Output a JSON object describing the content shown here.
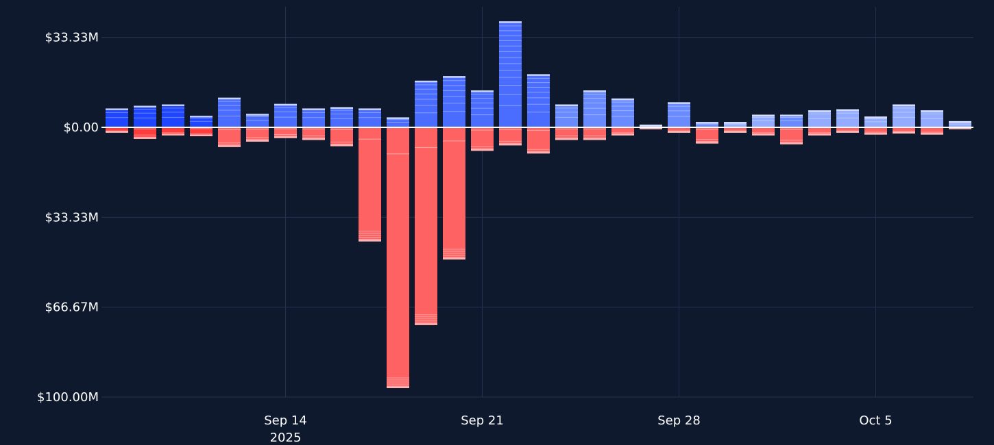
{
  "chart_data": {
    "type": "bar",
    "stacked": true,
    "grid": true,
    "colors": {
      "background": "#0f192e",
      "grid": "#25324f",
      "zero_line": "#ffffff",
      "positive": [
        "#1f45ff",
        "#4a6dff",
        "#6a8bff",
        "#94acff"
      ],
      "negative": [
        "#ff3c3c",
        "#ff6262",
        "#ff8a8a",
        "#ffb0b0"
      ]
    },
    "y_ticks": [
      {
        "value": 33.33,
        "label": "$33.33M"
      },
      {
        "value": 0,
        "label": "$0.00"
      },
      {
        "value": -33.33,
        "label": "$33.33M"
      },
      {
        "value": -66.67,
        "label": "$66.67M"
      },
      {
        "value": -100,
        "label": "$100.00M"
      }
    ],
    "ylim": [
      -100,
      40
    ],
    "x_ticks": [
      {
        "date": "2025-09-14",
        "label": "Sep 14",
        "sublabel": "2025"
      },
      {
        "date": "2025-09-21",
        "label": "Sep 21",
        "sublabel": ""
      },
      {
        "date": "2025-09-28",
        "label": "Sep 28",
        "sublabel": ""
      },
      {
        "date": "2025-10-05",
        "label": "Oct 5",
        "sublabel": ""
      }
    ],
    "xlim": [
      "2025-09-08",
      "2025-10-08"
    ],
    "bars": [
      {
        "date": "2025-09-08",
        "pos": 7.0,
        "neg": -2.0,
        "shade": 0
      },
      {
        "date": "2025-09-09",
        "pos": 8.0,
        "neg": -4.3,
        "shade": 0
      },
      {
        "date": "2025-09-10",
        "pos": 8.5,
        "neg": -3.0,
        "shade": 0
      },
      {
        "date": "2025-09-11",
        "pos": 4.3,
        "neg": -3.3,
        "shade": 0
      },
      {
        "date": "2025-09-12",
        "pos": 11.0,
        "neg": -7.3,
        "shade": 1
      },
      {
        "date": "2025-09-13",
        "pos": 5.0,
        "neg": -5.3,
        "shade": 1
      },
      {
        "date": "2025-09-14",
        "pos": 8.7,
        "neg": -4.0,
        "shade": 1
      },
      {
        "date": "2025-09-15",
        "pos": 7.0,
        "neg": -4.7,
        "shade": 1
      },
      {
        "date": "2025-09-16",
        "pos": 7.5,
        "neg": -7.0,
        "shade": 1
      },
      {
        "date": "2025-09-17",
        "pos": 7.0,
        "neg": -42.3,
        "shade": 1
      },
      {
        "date": "2025-09-18",
        "pos": 3.7,
        "neg": -96.7,
        "shade": 1
      },
      {
        "date": "2025-09-19",
        "pos": 17.3,
        "neg": -73.3,
        "shade": 1
      },
      {
        "date": "2025-09-20",
        "pos": 19.0,
        "neg": -49.0,
        "shade": 1
      },
      {
        "date": "2025-09-21",
        "pos": 13.7,
        "neg": -8.7,
        "shade": 1
      },
      {
        "date": "2025-09-22",
        "pos": 39.3,
        "neg": -6.7,
        "shade": 1
      },
      {
        "date": "2025-09-23",
        "pos": 19.7,
        "neg": -9.7,
        "shade": 1
      },
      {
        "date": "2025-09-24",
        "pos": 8.5,
        "neg": -4.7,
        "shade": 2
      },
      {
        "date": "2025-09-25",
        "pos": 13.7,
        "neg": -4.7,
        "shade": 2
      },
      {
        "date": "2025-09-26",
        "pos": 10.7,
        "neg": -3.0,
        "shade": 2
      },
      {
        "date": "2025-09-27",
        "pos": 1.0,
        "neg": -0.7,
        "shade": 3
      },
      {
        "date": "2025-09-28",
        "pos": 9.3,
        "neg": -2.0,
        "shade": 2
      },
      {
        "date": "2025-09-29",
        "pos": 2.0,
        "neg": -6.0,
        "shade": 2
      },
      {
        "date": "2025-09-30",
        "pos": 2.0,
        "neg": -2.0,
        "shade": 3
      },
      {
        "date": "2025-10-01",
        "pos": 4.7,
        "neg": -3.0,
        "shade": 3
      },
      {
        "date": "2025-10-02",
        "pos": 4.7,
        "neg": -6.3,
        "shade": 2
      },
      {
        "date": "2025-10-03",
        "pos": 6.3,
        "neg": -3.0,
        "shade": 3
      },
      {
        "date": "2025-10-04",
        "pos": 6.7,
        "neg": -2.0,
        "shade": 3
      },
      {
        "date": "2025-10-05",
        "pos": 4.0,
        "neg": -2.7,
        "shade": 3
      },
      {
        "date": "2025-10-06",
        "pos": 8.5,
        "neg": -2.3,
        "shade": 3
      },
      {
        "date": "2025-10-07",
        "pos": 6.3,
        "neg": -2.7,
        "shade": 3
      },
      {
        "date": "2025-10-08",
        "pos": 2.3,
        "neg": -0.7,
        "shade": 3
      }
    ]
  }
}
